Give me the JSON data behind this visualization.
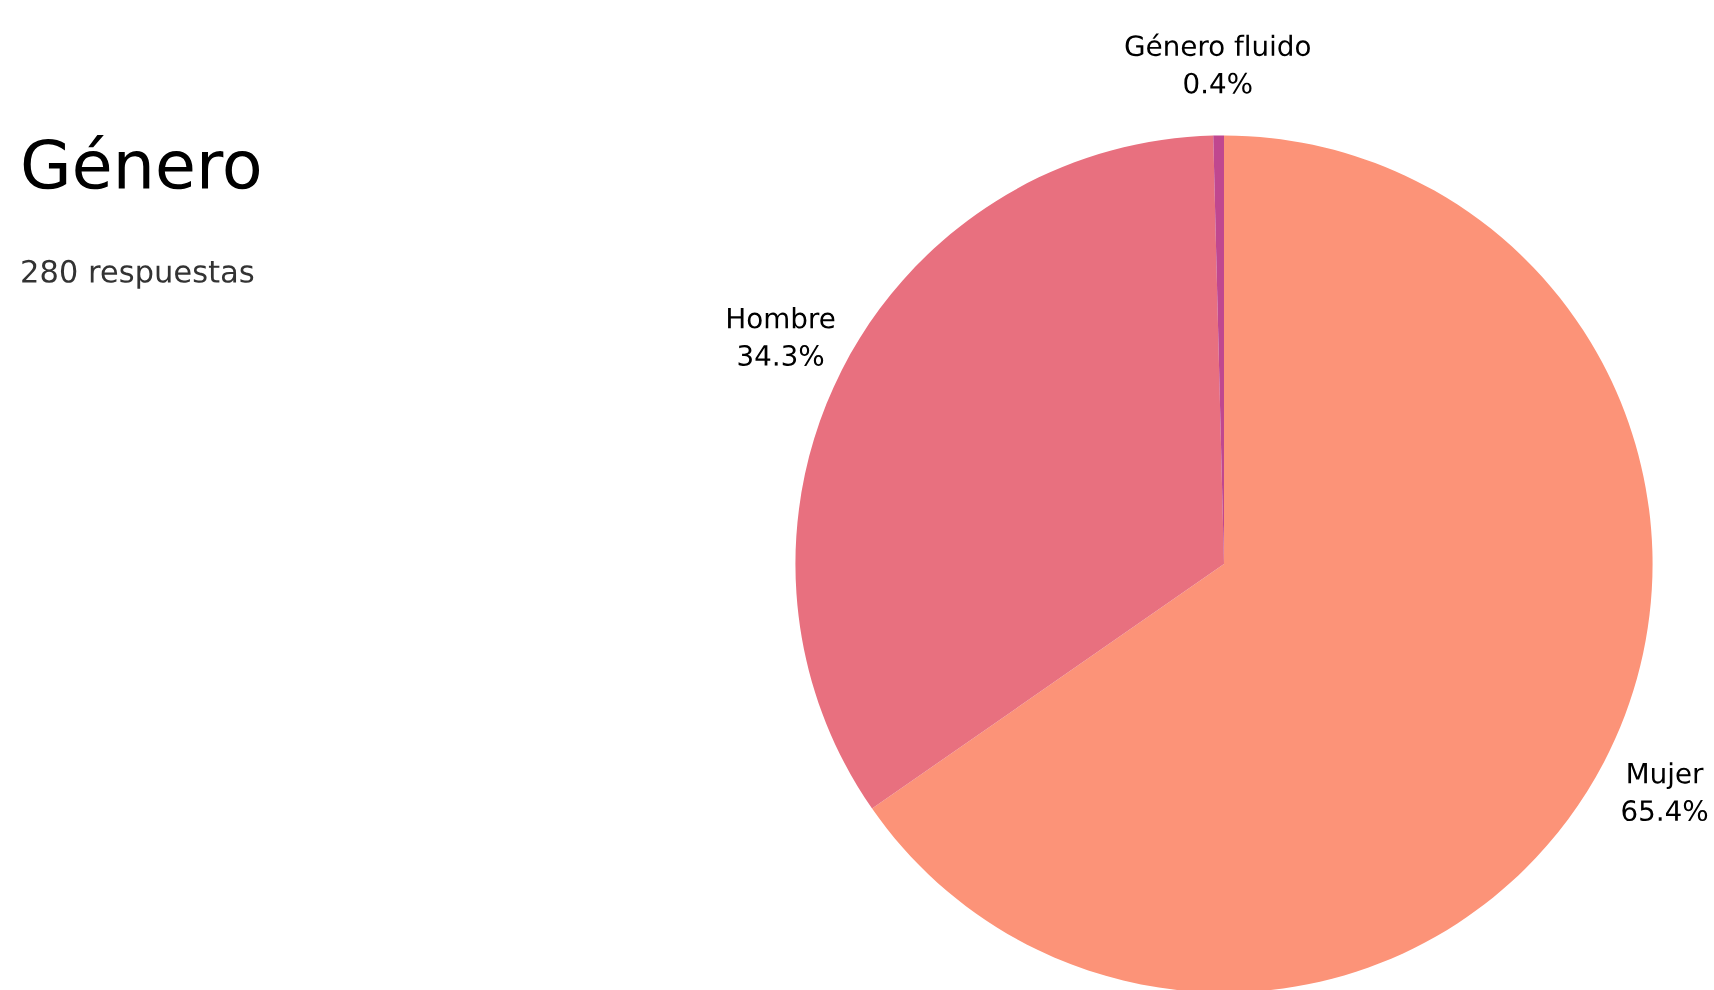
{
  "chart_data": {
    "type": "pie",
    "title": "Género",
    "subtitle": "280 respuestas",
    "categories": [
      "Mujer",
      "Hombre",
      "Género fluido"
    ],
    "values": [
      65.4,
      34.3,
      0.4
    ],
    "colors": [
      "#fc9378",
      "#e8707f",
      "#c0478f"
    ],
    "value_labels": [
      "65.4%",
      "34.3%",
      "0.4%"
    ],
    "legend": false
  }
}
